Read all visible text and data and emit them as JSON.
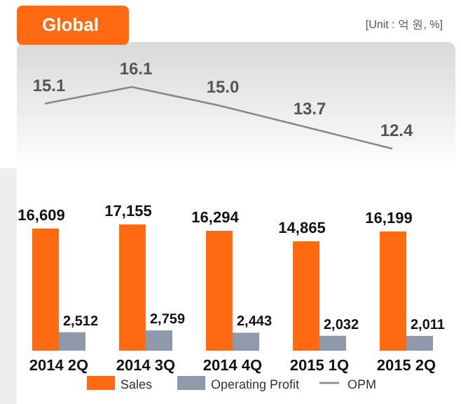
{
  "chart_data": [
    {
      "type": "line",
      "title": "Global",
      "annotations": [
        "[Unit : 억 원, %]"
      ],
      "categories": [
        null,
        null,
        null,
        null,
        null
      ],
      "tick_labels": false,
      "legend": "bottom",
      "series": [
        {
          "name": "OPM",
          "color": "#888888",
          "values": [
            15.1,
            16.1,
            15.0,
            13.7,
            12.4
          ],
          "value_labels": [
            "15.1",
            "16.1",
            "15.0",
            "13.7",
            "12.4"
          ]
        }
      ]
    },
    {
      "type": "bar",
      "categories": [
        "2014 2Q",
        "2014 3Q",
        "2014 4Q",
        "2015 1Q",
        "2015 2Q"
      ],
      "tick_labels": "x",
      "legend": "bottom",
      "series": [
        {
          "name": "Sales",
          "color": "#ff6a13",
          "values": [
            16609,
            17155,
            16294,
            14865,
            16199
          ],
          "value_labels": [
            "16,609",
            "17,155",
            "16,294",
            "14,865",
            "16,199"
          ]
        },
        {
          "name": "Operating Profit",
          "color": "#8e99ab",
          "values": [
            2512,
            2759,
            2443,
            2032,
            2011
          ],
          "value_labels": [
            "2,512",
            "2,759",
            "2,443",
            "2,032",
            "2,011"
          ]
        }
      ]
    }
  ]
}
